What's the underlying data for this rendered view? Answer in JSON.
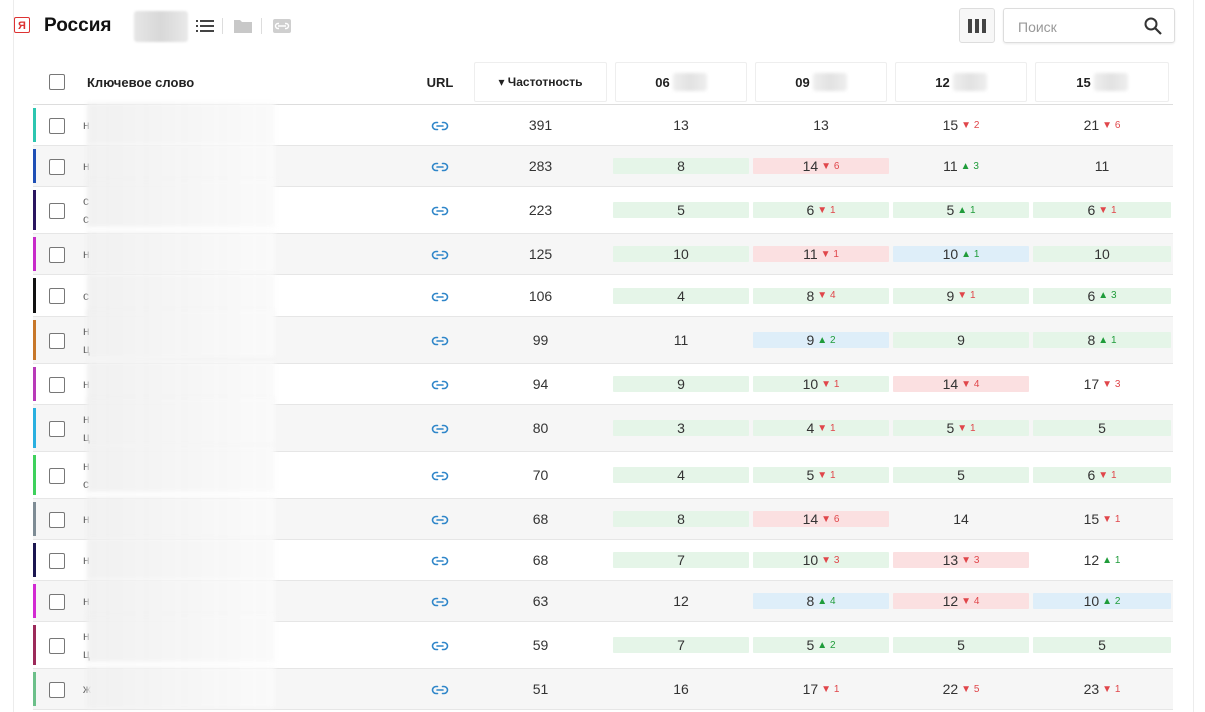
{
  "header": {
    "region_label": "Россия",
    "search_placeholder": "Поиск"
  },
  "columns": {
    "keyword": "Ключевое слово",
    "url": "URL",
    "frequency": "▾ Частотность",
    "dates": [
      "06",
      "09",
      "12",
      "15"
    ]
  },
  "rows": [
    {
      "color": "#2dc6b0",
      "kw": [
        "н",
        ""
      ],
      "freq": "391",
      "cells": [
        {
          "v": "13",
          "d": "",
          "bg": ""
        },
        {
          "v": "13",
          "d": "",
          "bg": ""
        },
        {
          "v": "15",
          "d": "▼ 2",
          "dir": "dn",
          "bg": ""
        },
        {
          "v": "21",
          "d": "▼ 6",
          "dir": "dn",
          "bg": ""
        }
      ]
    },
    {
      "color": "#1f4fb5",
      "kw": [
        "н",
        ""
      ],
      "freq": "283",
      "cells": [
        {
          "v": "8",
          "d": "",
          "bg": "g"
        },
        {
          "v": "14",
          "d": "▼ 6",
          "dir": "dn",
          "bg": "r"
        },
        {
          "v": "11",
          "d": "▲ 3",
          "dir": "up",
          "bg": ""
        },
        {
          "v": "11",
          "d": "",
          "bg": ""
        }
      ]
    },
    {
      "color": "#2a1560",
      "kw": [
        "с",
        "с"
      ],
      "freq": "223",
      "cells": [
        {
          "v": "5",
          "d": "",
          "bg": "g"
        },
        {
          "v": "6",
          "d": "▼ 1",
          "dir": "dn",
          "bg": "g"
        },
        {
          "v": "5",
          "d": "▲ 1",
          "dir": "up",
          "bg": "g"
        },
        {
          "v": "6",
          "d": "▼ 1",
          "dir": "dn",
          "bg": "g"
        }
      ]
    },
    {
      "color": "#c72ac9",
      "kw": [
        "н",
        ""
      ],
      "freq": "125",
      "cells": [
        {
          "v": "10",
          "d": "",
          "bg": "g"
        },
        {
          "v": "11",
          "d": "▼ 1",
          "dir": "dn",
          "bg": "r"
        },
        {
          "v": "10",
          "d": "▲ 1",
          "dir": "up",
          "bg": "b"
        },
        {
          "v": "10",
          "d": "",
          "bg": "g"
        }
      ]
    },
    {
      "color": "#111111",
      "kw": [
        "с",
        ""
      ],
      "freq": "106",
      "cells": [
        {
          "v": "4",
          "d": "",
          "bg": "g"
        },
        {
          "v": "8",
          "d": "▼ 4",
          "dir": "dn",
          "bg": "g"
        },
        {
          "v": "9",
          "d": "▼ 1",
          "dir": "dn",
          "bg": "g"
        },
        {
          "v": "6",
          "d": "▲ 3",
          "dir": "up",
          "bg": "g"
        }
      ]
    },
    {
      "color": "#c7772a",
      "kw": [
        "н",
        "ц"
      ],
      "freq": "99",
      "cells": [
        {
          "v": "11",
          "d": "",
          "bg": ""
        },
        {
          "v": "9",
          "d": "▲ 2",
          "dir": "up",
          "bg": "b"
        },
        {
          "v": "9",
          "d": "",
          "bg": "g"
        },
        {
          "v": "8",
          "d": "▲ 1",
          "dir": "up",
          "bg": "g"
        }
      ]
    },
    {
      "color": "#b83ab8",
      "kw": [
        "н",
        ""
      ],
      "freq": "94",
      "cells": [
        {
          "v": "9",
          "d": "",
          "bg": "g"
        },
        {
          "v": "10",
          "d": "▼ 1",
          "dir": "dn",
          "bg": "g"
        },
        {
          "v": "14",
          "d": "▼ 4",
          "dir": "dn",
          "bg": "r"
        },
        {
          "v": "17",
          "d": "▼ 3",
          "dir": "dn",
          "bg": ""
        }
      ]
    },
    {
      "color": "#2ab0e0",
      "kw": [
        "н",
        "ц"
      ],
      "freq": "80",
      "cells": [
        {
          "v": "3",
          "d": "",
          "bg": "g"
        },
        {
          "v": "4",
          "d": "▼ 1",
          "dir": "dn",
          "bg": "g"
        },
        {
          "v": "5",
          "d": "▼ 1",
          "dir": "dn",
          "bg": "g"
        },
        {
          "v": "5",
          "d": "",
          "bg": "g"
        }
      ]
    },
    {
      "color": "#3ed15c",
      "kw": [
        "н",
        "с"
      ],
      "freq": "70",
      "cells": [
        {
          "v": "4",
          "d": "",
          "bg": "g"
        },
        {
          "v": "5",
          "d": "▼ 1",
          "dir": "dn",
          "bg": "g"
        },
        {
          "v": "5",
          "d": "",
          "bg": "g"
        },
        {
          "v": "6",
          "d": "▼ 1",
          "dir": "dn",
          "bg": "g"
        }
      ]
    },
    {
      "color": "#7e8c95",
      "kw": [
        "н",
        ""
      ],
      "freq": "68",
      "cells": [
        {
          "v": "8",
          "d": "",
          "bg": "g"
        },
        {
          "v": "14",
          "d": "▼ 6",
          "dir": "dn",
          "bg": "r"
        },
        {
          "v": "14",
          "d": "",
          "bg": ""
        },
        {
          "v": "15",
          "d": "▼ 1",
          "dir": "dn",
          "bg": ""
        }
      ]
    },
    {
      "color": "#1b1650",
      "kw": [
        "н",
        ""
      ],
      "freq": "68",
      "cells": [
        {
          "v": "7",
          "d": "",
          "bg": "g"
        },
        {
          "v": "10",
          "d": "▼ 3",
          "dir": "dn",
          "bg": "g"
        },
        {
          "v": "13",
          "d": "▼ 3",
          "dir": "dn",
          "bg": "r"
        },
        {
          "v": "12",
          "d": "▲ 1",
          "dir": "up",
          "bg": ""
        }
      ]
    },
    {
      "color": "#d22ad2",
      "kw": [
        "н",
        ""
      ],
      "freq": "63",
      "cells": [
        {
          "v": "12",
          "d": "",
          "bg": ""
        },
        {
          "v": "8",
          "d": "▲ 4",
          "dir": "up",
          "bg": "b"
        },
        {
          "v": "12",
          "d": "▼ 4",
          "dir": "dn",
          "bg": "r"
        },
        {
          "v": "10",
          "d": "▲ 2",
          "dir": "up",
          "bg": "b"
        }
      ]
    },
    {
      "color": "#9c2a5a",
      "kw": [
        "н",
        "ц"
      ],
      "freq": "59",
      "cells": [
        {
          "v": "7",
          "d": "",
          "bg": "g"
        },
        {
          "v": "5",
          "d": "▲ 2",
          "dir": "up",
          "bg": "g"
        },
        {
          "v": "5",
          "d": "",
          "bg": "g"
        },
        {
          "v": "5",
          "d": "",
          "bg": "g"
        }
      ]
    },
    {
      "color": "#6cc08a",
      "kw": [
        "ж",
        ""
      ],
      "freq": "51",
      "cells": [
        {
          "v": "16",
          "d": "",
          "bg": ""
        },
        {
          "v": "17",
          "d": "▼ 1",
          "dir": "dn",
          "bg": ""
        },
        {
          "v": "22",
          "d": "▼ 5",
          "dir": "dn",
          "bg": ""
        },
        {
          "v": "23",
          "d": "▼ 1",
          "dir": "dn",
          "bg": ""
        }
      ]
    }
  ]
}
